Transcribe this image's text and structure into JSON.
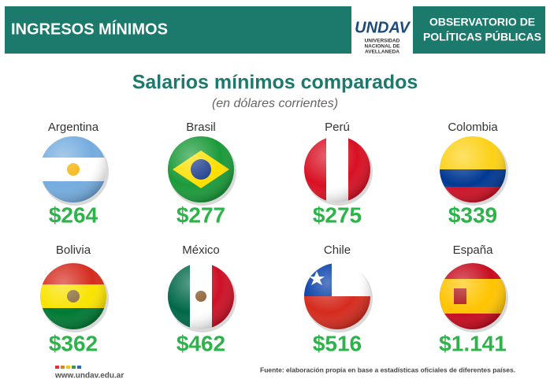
{
  "header": {
    "section": "INGRESOS MÍNIMOS",
    "logo": [
      "UNDAV",
      "UNIVERSIDAD",
      "NACIONAL DE",
      "AVELLANEDA"
    ],
    "observatory": [
      "OBSERVATORIO DE",
      "POLÍTICAS PÚBLICAS"
    ]
  },
  "title": "Salarios mínimos comparados",
  "subtitle": "(en dólares corrientes)",
  "countries": [
    {
      "name": "Argentina",
      "salary": "$264"
    },
    {
      "name": "Brasil",
      "salary": "$277"
    },
    {
      "name": "Perú",
      "salary": "$275"
    },
    {
      "name": "Colombia",
      "salary": "$339"
    },
    {
      "name": "Bolivia",
      "salary": "$362"
    },
    {
      "name": "México",
      "salary": "$462"
    },
    {
      "name": "Chile",
      "salary": "$516"
    },
    {
      "name": "España",
      "salary": "$1.141"
    }
  ],
  "footer": {
    "url": "www.undav.edu.ar",
    "source": "Fuente: elaboración propia en base a estadísticas oficiales de diferentes países."
  }
}
